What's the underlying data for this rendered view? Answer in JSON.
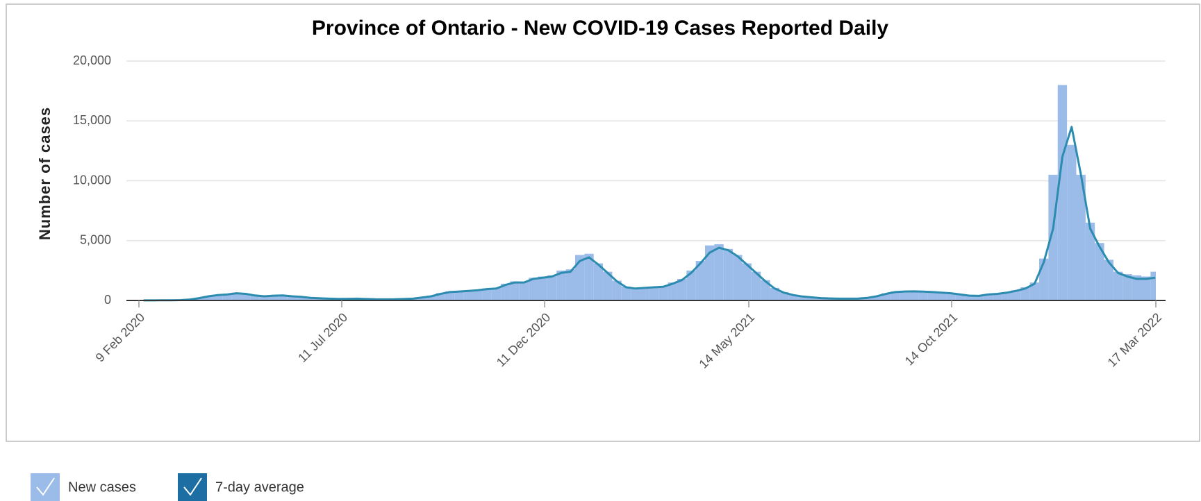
{
  "chart_data": {
    "type": "bar_line",
    "title": "Province of Ontario -  New COVID-19 Cases Reported Daily",
    "y_label": "Number of cases",
    "x": [
      "2020-02-09",
      "2020-02-16",
      "2020-02-23",
      "2020-03-01",
      "2020-03-08",
      "2020-03-15",
      "2020-03-22",
      "2020-03-29",
      "2020-04-05",
      "2020-04-12",
      "2020-04-19",
      "2020-04-26",
      "2020-05-03",
      "2020-05-10",
      "2020-05-17",
      "2020-05-24",
      "2020-05-31",
      "2020-06-07",
      "2020-06-14",
      "2020-06-21",
      "2020-06-28",
      "2020-07-05",
      "2020-07-12",
      "2020-07-19",
      "2020-07-26",
      "2020-08-02",
      "2020-08-09",
      "2020-08-16",
      "2020-08-23",
      "2020-08-30",
      "2020-09-06",
      "2020-09-13",
      "2020-09-20",
      "2020-09-27",
      "2020-10-04",
      "2020-10-11",
      "2020-10-18",
      "2020-10-25",
      "2020-11-01",
      "2020-11-08",
      "2020-11-15",
      "2020-11-22",
      "2020-11-29",
      "2020-12-06",
      "2020-12-13",
      "2020-12-20",
      "2020-12-27",
      "2021-01-03",
      "2021-01-10",
      "2021-01-17",
      "2021-01-24",
      "2021-01-31",
      "2021-02-07",
      "2021-02-14",
      "2021-02-21",
      "2021-02-28",
      "2021-03-07",
      "2021-03-14",
      "2021-03-21",
      "2021-03-28",
      "2021-04-04",
      "2021-04-11",
      "2021-04-18",
      "2021-04-25",
      "2021-05-02",
      "2021-05-09",
      "2021-05-16",
      "2021-05-23",
      "2021-05-30",
      "2021-06-06",
      "2021-06-13",
      "2021-06-20",
      "2021-06-27",
      "2021-07-04",
      "2021-07-11",
      "2021-07-18",
      "2021-07-25",
      "2021-08-01",
      "2021-08-08",
      "2021-08-15",
      "2021-08-22",
      "2021-08-29",
      "2021-09-05",
      "2021-09-12",
      "2021-09-19",
      "2021-09-26",
      "2021-10-03",
      "2021-10-10",
      "2021-10-17",
      "2021-10-24",
      "2021-10-31",
      "2021-11-07",
      "2021-11-14",
      "2021-11-21",
      "2021-11-28",
      "2021-12-05",
      "2021-12-12",
      "2021-12-19",
      "2021-12-26",
      "2022-01-02",
      "2022-01-09",
      "2022-01-16",
      "2022-01-23",
      "2022-01-30",
      "2022-02-06",
      "2022-02-13",
      "2022-02-20",
      "2022-02-27",
      "2022-03-06",
      "2022-03-13"
    ],
    "series": [
      {
        "name": "New cases",
        "type": "bar",
        "color": "#9bbbe8",
        "values": [
          5,
          5,
          10,
          15,
          30,
          90,
          220,
          380,
          480,
          550,
          650,
          580,
          430,
          360,
          420,
          440,
          360,
          310,
          230,
          190,
          160,
          140,
          150,
          160,
          130,
          110,
          100,
          110,
          130,
          170,
          280,
          400,
          620,
          760,
          800,
          850,
          900,
          1000,
          1050,
          1400,
          1600,
          1550,
          1900,
          2000,
          2100,
          2500,
          2600,
          3800,
          3900,
          3100,
          2400,
          1650,
          1150,
          1050,
          1100,
          1150,
          1200,
          1500,
          1800,
          2500,
          3300,
          4600,
          4700,
          4300,
          3800,
          3100,
          2400,
          1700,
          1050,
          700,
          480,
          350,
          270,
          210,
          180,
          160,
          160,
          170,
          240,
          380,
          600,
          760,
          800,
          800,
          770,
          720,
          680,
          620,
          520,
          420,
          400,
          520,
          580,
          700,
          850,
          1100,
          1500,
          3500,
          10500,
          18000,
          13000,
          10500,
          6500,
          4800,
          3400,
          2400,
          2200,
          2100,
          2000,
          2400
        ]
      },
      {
        "name": "7-day average",
        "type": "line",
        "color": "#2b8cb0",
        "values": [
          5,
          5,
          10,
          15,
          30,
          80,
          200,
          350,
          450,
          500,
          600,
          550,
          420,
          350,
          400,
          420,
          350,
          300,
          220,
          180,
          150,
          130,
          140,
          150,
          120,
          100,
          90,
          100,
          120,
          150,
          250,
          350,
          550,
          700,
          750,
          800,
          850,
          950,
          1000,
          1300,
          1500,
          1500,
          1800,
          1900,
          2000,
          2300,
          2400,
          3300,
          3600,
          3000,
          2300,
          1600,
          1100,
          1000,
          1050,
          1100,
          1150,
          1400,
          1700,
          2300,
          3100,
          4000,
          4400,
          4200,
          3700,
          3000,
          2300,
          1600,
          1000,
          650,
          450,
          330,
          260,
          200,
          170,
          150,
          150,
          160,
          220,
          350,
          550,
          700,
          750,
          760,
          740,
          700,
          650,
          600,
          500,
          400,
          380,
          500,
          550,
          650,
          800,
          1000,
          1400,
          3200,
          6000,
          12000,
          14500,
          10500,
          6000,
          4500,
          3200,
          2300,
          2000,
          1800,
          1800,
          1900
        ]
      }
    ],
    "xlim": [
      "2020-02-09",
      "2022-03-17"
    ],
    "xticks": [
      {
        "value": "2020-02-09",
        "label": "9 Feb 2020"
      },
      {
        "value": "2020-07-11",
        "label": "11 Jul 2020"
      },
      {
        "value": "2020-12-11",
        "label": "11 Dec 2020"
      },
      {
        "value": "2021-05-14",
        "label": "14 May 2021"
      },
      {
        "value": "2021-10-14",
        "label": "14 Oct 2021"
      },
      {
        "value": "2022-03-17",
        "label": "17 Mar 2022"
      }
    ],
    "ylim": [
      0,
      20000
    ],
    "yticks": [
      0,
      {
        "value": 5000,
        "label": "5,000"
      },
      {
        "value": 10000,
        "label": "10,000"
      },
      {
        "value": 15000,
        "label": "15,000"
      },
      {
        "value": 20000,
        "label": "20,000"
      }
    ],
    "grid": true,
    "legend": "bottom-left"
  }
}
